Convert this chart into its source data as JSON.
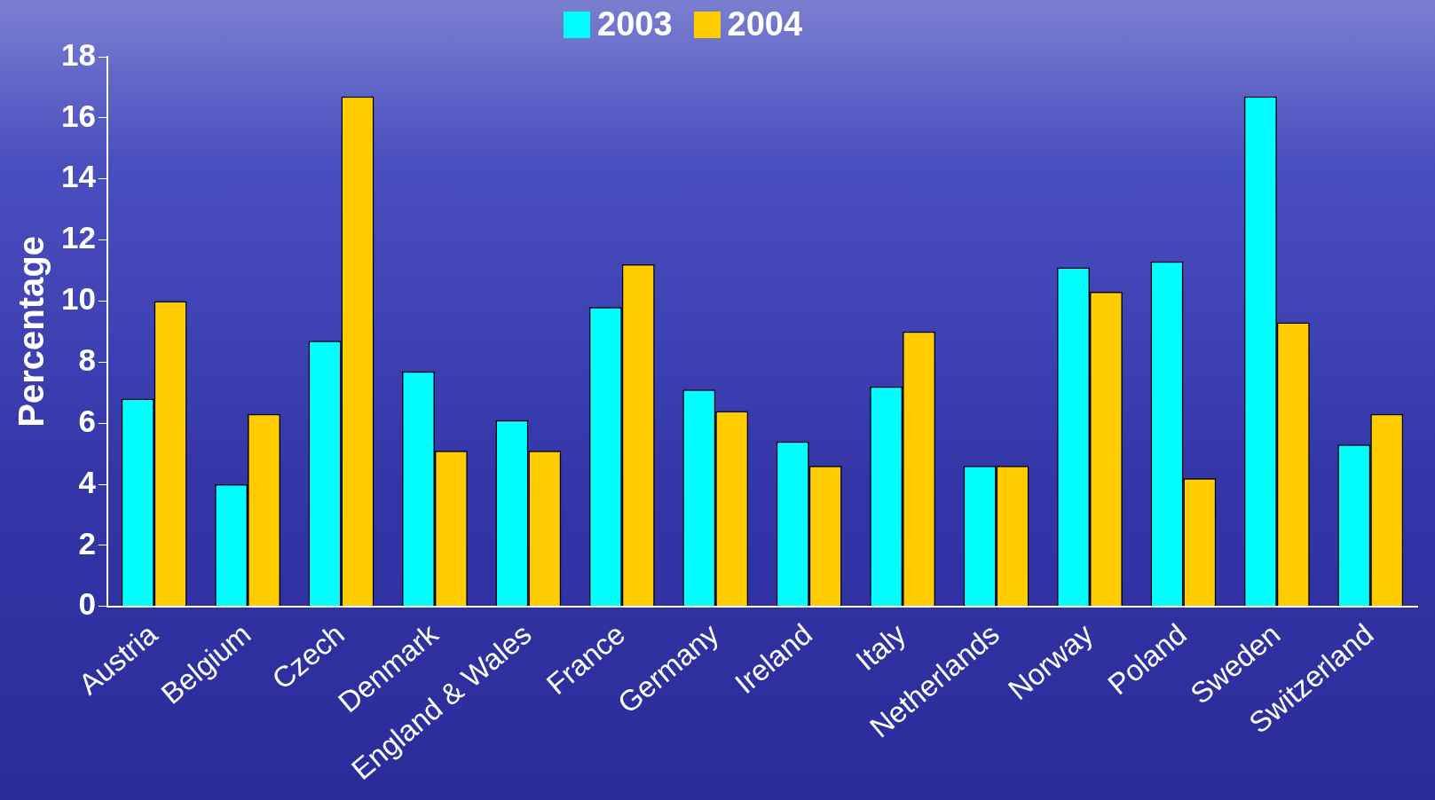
{
  "chart_data": {
    "type": "bar",
    "ylabel": "Percentage",
    "categories": [
      "Austria",
      "Belgium",
      "Czech",
      "Denmark",
      "England & Wales",
      "France",
      "Germany",
      "Ireland",
      "Italy",
      "Netherlands",
      "Norway",
      "Poland",
      "Sweden",
      "Switzerland"
    ],
    "series": [
      {
        "name": "2003",
        "color": "#00ffff",
        "values": [
          6.8,
          4.0,
          8.7,
          7.7,
          6.1,
          9.8,
          7.1,
          5.4,
          7.2,
          4.6,
          11.1,
          11.3,
          16.7,
          5.3
        ]
      },
      {
        "name": "2004",
        "color": "#ffcc00",
        "values": [
          10.0,
          6.3,
          16.7,
          5.1,
          5.1,
          11.2,
          6.4,
          4.6,
          9.0,
          4.6,
          10.3,
          4.2,
          9.3,
          6.3
        ]
      }
    ],
    "ylim": [
      0,
      18
    ],
    "yticks": [
      0,
      2,
      4,
      6,
      8,
      10,
      12,
      14,
      16,
      18
    ],
    "grid": false,
    "legend": "top"
  }
}
